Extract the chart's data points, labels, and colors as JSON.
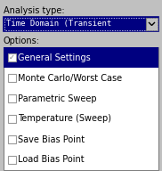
{
  "bg_color": "#c0c0c0",
  "label_analysis": "Analysis type:",
  "dropdown_text": "Time Domain (Transient",
  "label_options": "Options:",
  "listbox_bg": "#ffffff",
  "listbox_selected_bg": "#000080",
  "listbox_selected_fg": "#ffffff",
  "listbox_fg": "#000000",
  "items": [
    {
      "text": "General Settings",
      "checked": true,
      "selected": true
    },
    {
      "text": "Monte Carlo/Worst Case",
      "checked": false,
      "selected": false
    },
    {
      "text": "Parametric Sweep",
      "checked": false,
      "selected": false
    },
    {
      "text": "Temperature (Sweep)",
      "checked": false,
      "selected": false
    },
    {
      "text": "Save Bias Point",
      "checked": false,
      "selected": false
    },
    {
      "text": "Load Bias Point",
      "checked": false,
      "selected": false
    }
  ],
  "dropdown_border_color": "#000080",
  "fig_w": 1.82,
  "fig_h": 1.92,
  "dpi": 100
}
